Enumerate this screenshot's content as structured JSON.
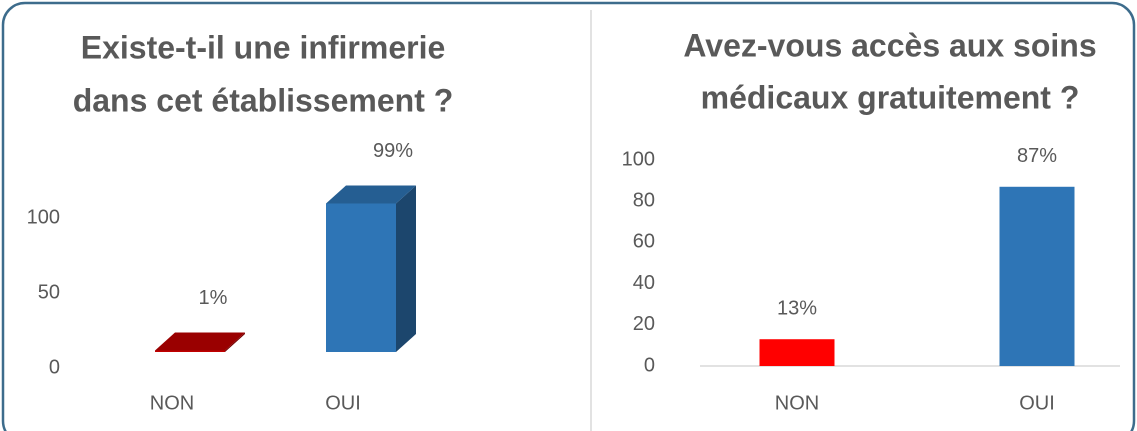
{
  "chart_data": [
    {
      "type": "bar",
      "3d": true,
      "title": [
        "Existe-t-il une infirmerie",
        "dans cet établissement ?"
      ],
      "categories": [
        "NON",
        "OUI"
      ],
      "values": [
        1,
        99
      ],
      "value_labels": [
        "1%",
        "99%"
      ],
      "colors": [
        "#c00000",
        "#2e75b6"
      ],
      "ylim": [
        0,
        100
      ],
      "yticks": [
        0,
        50,
        100
      ]
    },
    {
      "type": "bar",
      "3d": false,
      "title": [
        "Avez-vous accès aux soins",
        "médicaux gratuitement ?"
      ],
      "categories": [
        "NON",
        "OUI"
      ],
      "values": [
        13,
        87
      ],
      "value_labels": [
        "13%",
        "87%"
      ],
      "colors": [
        "#ff0000",
        "#2e75b6"
      ],
      "ylim": [
        0,
        100
      ],
      "yticks": [
        0,
        20,
        40,
        60,
        80,
        100
      ]
    }
  ]
}
